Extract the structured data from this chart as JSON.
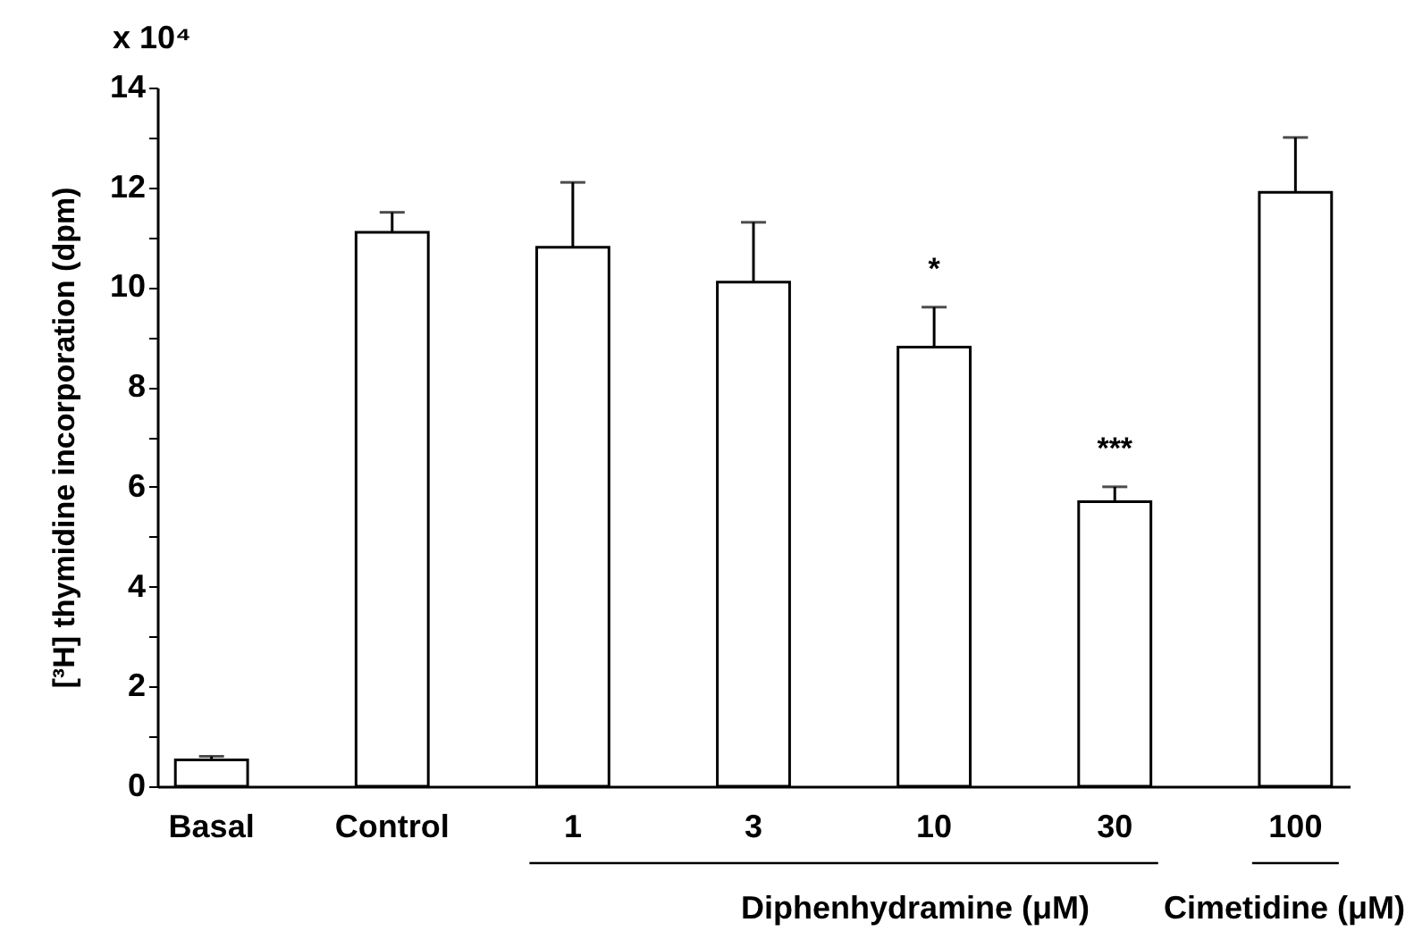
{
  "chart_data": {
    "type": "bar",
    "ylabel": "[³H] thymidine incorporation (dpm)",
    "categories": [
      "Basal",
      "Control",
      "1",
      "3",
      "10",
      "30",
      "100"
    ],
    "values": [
      0.53,
      11.1,
      10.8,
      10.1,
      8.8,
      5.7,
      11.9
    ],
    "errors": [
      0.07,
      0.4,
      1.3,
      1.2,
      0.8,
      0.3,
      1.1
    ],
    "colors": [
      "#ffffff",
      "#ffffff",
      "#ffffff",
      "#ffffff",
      "#ffffff",
      "#ffffff",
      "#ffffff"
    ],
    "ylim": [
      0,
      14
    ],
    "yticks": [
      0,
      {
        "value": 1,
        "label": null
      },
      2,
      {
        "value": 3,
        "label": null
      },
      4,
      {
        "value": 5,
        "label": null
      },
      6,
      {
        "value": 7,
        "label": null
      },
      8,
      {
        "value": 9,
        "label": null
      },
      10,
      {
        "value": 11,
        "label": null
      },
      12,
      {
        "value": 13,
        "label": null
      },
      14
    ],
    "grid": false,
    "annotations": [
      "x 10⁴",
      "Diphenhydramine (μM)",
      "Cimetidine (μM)",
      {
        "text": "*",
        "x": "10",
        "y": 9.6
      },
      {
        "text": "***",
        "x": "30",
        "y": 6.0
      }
    ]
  }
}
